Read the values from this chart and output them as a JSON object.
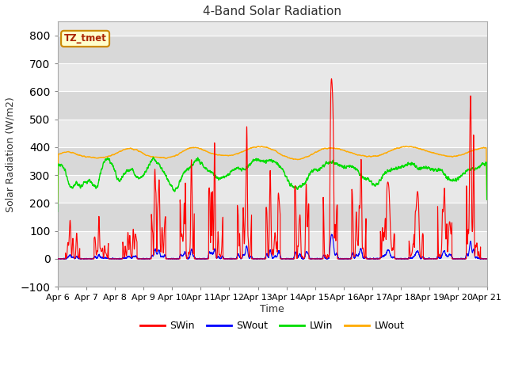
{
  "title": "4-Band Solar Radiation",
  "ylabel": "Solar Radiation (W/m2)",
  "xlabel": "Time",
  "ylim": [
    -100,
    850
  ],
  "xlim": [
    0,
    15
  ],
  "xtick_labels": [
    "Apr 6",
    "Apr 7",
    "Apr 8",
    "Apr 9",
    "Apr 10",
    "Apr 11",
    "Apr 12",
    "Apr 13",
    "Apr 14",
    "Apr 15",
    "Apr 16",
    "Apr 17",
    "Apr 18",
    "Apr 19",
    "Apr 20",
    "Apr 21"
  ],
  "annotation_text": "TZ_tmet",
  "annotation_bg": "#ffffcc",
  "annotation_border": "#cc8800",
  "colors": {
    "SWin": "#ff0000",
    "SWout": "#0000ff",
    "LWin": "#00dd00",
    "LWout": "#ffaa00"
  },
  "plot_bg": "#e8e8e8",
  "fig_bg": "#ffffff",
  "grid_color": "#ffffff",
  "title_fontsize": 11,
  "label_fontsize": 9,
  "tick_fontsize": 8
}
